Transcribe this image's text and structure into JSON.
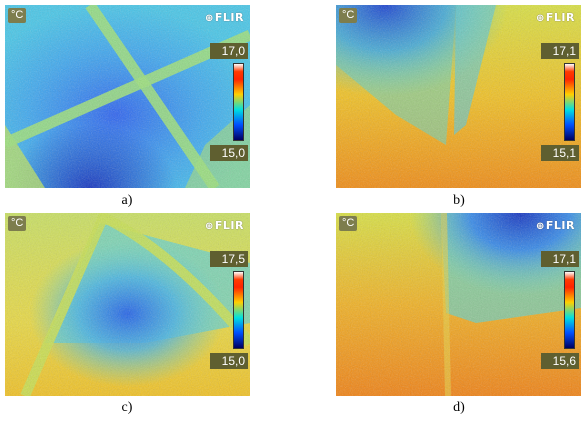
{
  "panels": [
    {
      "caption": "a)",
      "unit": "°C",
      "logo": "FLIR",
      "max": "17,0",
      "min": "15,0"
    },
    {
      "caption": "b)",
      "unit": "°C",
      "logo": "FLIR",
      "max": "17,1",
      "min": "15,1"
    },
    {
      "caption": "c)",
      "unit": "°C",
      "logo": "FLIR",
      "max": "17,5",
      "min": "15,0"
    },
    {
      "caption": "d)",
      "unit": "°C",
      "logo": "FLIR",
      "max": "17,1",
      "min": "15,6"
    }
  ],
  "colors": {
    "palette_hot": "#ff2400",
    "palette_warm": "#ffd000",
    "palette_mid": "#00e0e0",
    "palette_cold": "#0050ff"
  }
}
